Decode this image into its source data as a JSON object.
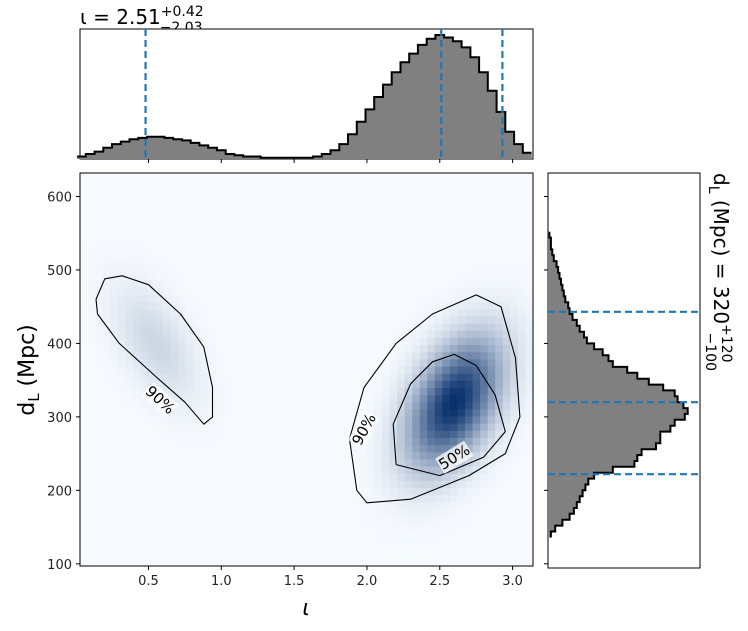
{
  "chart_data": [
    {
      "panel": "top-marginal",
      "type": "histogram",
      "title_prefix": "ι = 2.51",
      "title_sup": "+0.42",
      "title_sub": "−2.03",
      "xlim": [
        0.03,
        3.14
      ],
      "median": 2.51,
      "lower": 0.48,
      "upper": 2.93,
      "bins": [
        0.04,
        0.1,
        0.16,
        0.22,
        0.28,
        0.34,
        0.4,
        0.46,
        0.52,
        0.58,
        0.64,
        0.7,
        0.76,
        0.82,
        0.88,
        0.94,
        1.0,
        1.06,
        1.12,
        1.18,
        1.24,
        1.3,
        1.36,
        1.42,
        1.48,
        1.54,
        1.6,
        1.66,
        1.72,
        1.78,
        1.84,
        1.9,
        1.96,
        2.02,
        2.08,
        2.14,
        2.2,
        2.26,
        2.32,
        2.38,
        2.44,
        2.5,
        2.56,
        2.62,
        2.68,
        2.74,
        2.8,
        2.86,
        2.92,
        2.98,
        3.04,
        3.1
      ],
      "values": [
        0.02,
        0.04,
        0.06,
        0.09,
        0.12,
        0.14,
        0.16,
        0.17,
        0.18,
        0.18,
        0.17,
        0.16,
        0.15,
        0.13,
        0.11,
        0.09,
        0.07,
        0.04,
        0.03,
        0.02,
        0.02,
        0.01,
        0.01,
        0.01,
        0.01,
        0.01,
        0.01,
        0.02,
        0.04,
        0.07,
        0.12,
        0.2,
        0.3,
        0.4,
        0.5,
        0.6,
        0.7,
        0.78,
        0.85,
        0.92,
        0.97,
        1.0,
        0.98,
        0.95,
        0.9,
        0.82,
        0.7,
        0.55,
        0.38,
        0.22,
        0.12,
        0.05
      ]
    },
    {
      "panel": "joint",
      "type": "heatmap",
      "xlabel": "ι",
      "ylabel": "d_L (Mpc)",
      "xlim": [
        0.03,
        3.14
      ],
      "ylim": [
        97,
        632
      ],
      "xticks": [
        "0.5",
        "1.0",
        "1.5",
        "2.0",
        "2.5",
        "3.0"
      ],
      "yticks": [
        "100",
        "200",
        "300",
        "400",
        "500",
        "600"
      ],
      "blobs": [
        {
          "x": 2.6,
          "y": 320,
          "sx": 0.22,
          "sy": 60,
          "rho": 0.45,
          "amp": 1.0
        },
        {
          "x": 0.55,
          "y": 400,
          "sx": 0.2,
          "sy": 55,
          "rho": -0.55,
          "amp": 0.18
        }
      ],
      "contours": [
        {
          "label": "50%",
          "points": [
            [
              2.2,
              235
            ],
            [
              2.18,
              290
            ],
            [
              2.3,
              345
            ],
            [
              2.45,
              375
            ],
            [
              2.6,
              385
            ],
            [
              2.75,
              370
            ],
            [
              2.88,
              330
            ],
            [
              2.95,
              280
            ],
            [
              2.8,
              245
            ],
            [
              2.5,
              220
            ],
            [
              2.2,
              235
            ]
          ]
        },
        {
          "label": "90%",
          "points": [
            [
              1.93,
              200
            ],
            [
              1.88,
              270
            ],
            [
              1.98,
              340
            ],
            [
              2.2,
              400
            ],
            [
              2.45,
              440
            ],
            [
              2.75,
              466
            ],
            [
              2.92,
              450
            ],
            [
              3.02,
              380
            ],
            [
              3.05,
              300
            ],
            [
              2.95,
              250
            ],
            [
              2.7,
              220
            ],
            [
              2.3,
              188
            ],
            [
              2.0,
              183
            ],
            [
              1.93,
              200
            ]
          ]
        },
        {
          "label": "90%",
          "points": [
            [
              0.14,
              460
            ],
            [
              0.2,
              488
            ],
            [
              0.32,
              492
            ],
            [
              0.5,
              480
            ],
            [
              0.72,
              440
            ],
            [
              0.88,
              395
            ],
            [
              0.94,
              340
            ],
            [
              0.94,
              300
            ],
            [
              0.88,
              290
            ],
            [
              0.75,
              320
            ],
            [
              0.55,
              355
            ],
            [
              0.3,
              400
            ],
            [
              0.15,
              440
            ],
            [
              0.14,
              460
            ]
          ]
        }
      ],
      "contour_labels": [
        {
          "text": "50%",
          "x": 2.6,
          "y": 245,
          "angle": -32
        },
        {
          "text": "90%",
          "x": 1.98,
          "y": 283,
          "angle": -62
        },
        {
          "text": "90%",
          "x": 0.58,
          "y": 323,
          "angle": 42
        }
      ]
    },
    {
      "panel": "right-marginal",
      "type": "histogram",
      "orientation": "horizontal",
      "label_prefix": "d_L (Mpc) = 320",
      "label_sup": "+120",
      "label_sub": "−100",
      "ylim": [
        97,
        632
      ],
      "median": 320,
      "lower": 222,
      "upper": 443,
      "bins": [
        140,
        148,
        156,
        164,
        172,
        180,
        188,
        196,
        204,
        212,
        220,
        228,
        236,
        244,
        252,
        260,
        268,
        276,
        284,
        292,
        300,
        308,
        316,
        324,
        332,
        340,
        348,
        356,
        364,
        372,
        380,
        388,
        396,
        404,
        412,
        420,
        428,
        436,
        444,
        452,
        460,
        468,
        476,
        484,
        492,
        500,
        508,
        516,
        524,
        532,
        540,
        548
      ],
      "values": [
        0.02,
        0.05,
        0.1,
        0.15,
        0.18,
        0.2,
        0.22,
        0.24,
        0.26,
        0.28,
        0.32,
        0.45,
        0.6,
        0.62,
        0.65,
        0.75,
        0.78,
        0.78,
        0.85,
        0.88,
        0.95,
        0.97,
        0.94,
        0.9,
        0.88,
        0.8,
        0.7,
        0.62,
        0.55,
        0.45,
        0.42,
        0.38,
        0.32,
        0.27,
        0.25,
        0.22,
        0.2,
        0.17,
        0.15,
        0.14,
        0.12,
        0.11,
        0.1,
        0.09,
        0.08,
        0.07,
        0.06,
        0.04,
        0.03,
        0.02,
        0.02,
        0.01
      ]
    }
  ]
}
